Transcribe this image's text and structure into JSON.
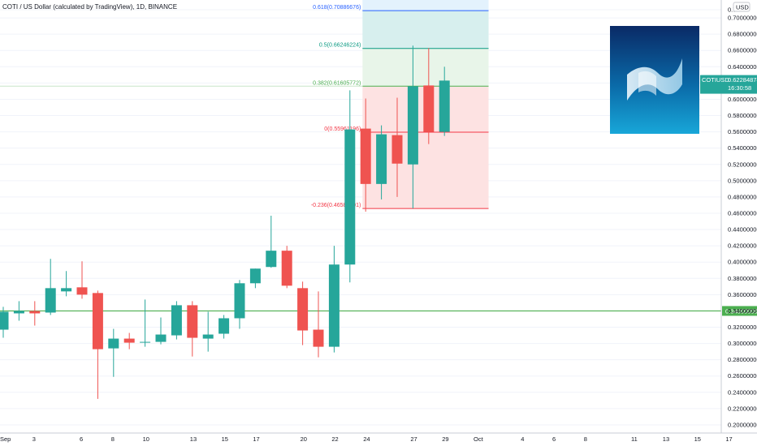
{
  "chart_data": {
    "type": "candlestick",
    "title": "COTI / US Dollar (calculated by TradingView), 1D, BINANCE",
    "currency_label": "USD",
    "y_ticks": [
      "0.20000000",
      "0.22000000",
      "0.24000000",
      "0.26000000",
      "0.28000000",
      "0.30000000",
      "0.32000000",
      "0.34000000",
      "0.36000000",
      "0.38000000",
      "0.40000000",
      "0.42000000",
      "0.44000000",
      "0.46000000",
      "0.48000000",
      "0.50000000",
      "0.52000000",
      "0.54000000",
      "0.56000000",
      "0.58000000",
      "0.60000000",
      "0.62000000",
      "0.64000000",
      "0.66000000",
      "0.68000000",
      "0.70000000",
      "0.7"
    ],
    "ylim": [
      0.19,
      0.722
    ],
    "x_ticks": [
      {
        "day": 0,
        "label": "Sep"
      },
      {
        "day": 2,
        "label": "3"
      },
      {
        "day": 5,
        "label": "6"
      },
      {
        "day": 7,
        "label": "8"
      },
      {
        "day": 9,
        "label": "10"
      },
      {
        "day": 12,
        "label": "13"
      },
      {
        "day": 14,
        "label": "15"
      },
      {
        "day": 16,
        "label": "17"
      },
      {
        "day": 19,
        "label": "20"
      },
      {
        "day": 21,
        "label": "22"
      },
      {
        "day": 23,
        "label": "24"
      },
      {
        "day": 26,
        "label": "27"
      },
      {
        "day": 28,
        "label": "29"
      },
      {
        "day": 30,
        "label": "Oct"
      },
      {
        "day": 33,
        "label": "4"
      },
      {
        "day": 35,
        "label": "6"
      },
      {
        "day": 37,
        "label": "8"
      },
      {
        "day": 40,
        "label": "11"
      },
      {
        "day": 42,
        "label": "13"
      },
      {
        "day": 44,
        "label": "15"
      },
      {
        "day": 46,
        "label": "17"
      }
    ],
    "candles": [
      {
        "day": 0,
        "open": 0.317,
        "high": 0.345,
        "low": 0.307,
        "close": 0.339
      },
      {
        "day": 1,
        "open": 0.337,
        "high": 0.352,
        "low": 0.328,
        "close": 0.34
      },
      {
        "day": 2,
        "open": 0.34,
        "high": 0.352,
        "low": 0.322,
        "close": 0.337
      },
      {
        "day": 3,
        "open": 0.338,
        "high": 0.404,
        "low": 0.335,
        "close": 0.368
      },
      {
        "day": 4,
        "open": 0.364,
        "high": 0.389,
        "low": 0.358,
        "close": 0.368
      },
      {
        "day": 5,
        "open": 0.369,
        "high": 0.401,
        "low": 0.355,
        "close": 0.36
      },
      {
        "day": 6,
        "open": 0.362,
        "high": 0.365,
        "low": 0.232,
        "close": 0.293
      },
      {
        "day": 7,
        "open": 0.294,
        "high": 0.318,
        "low": 0.259,
        "close": 0.306
      },
      {
        "day": 8,
        "open": 0.306,
        "high": 0.313,
        "low": 0.293,
        "close": 0.301
      },
      {
        "day": 9,
        "open": 0.301,
        "high": 0.354,
        "low": 0.296,
        "close": 0.302
      },
      {
        "day": 10,
        "open": 0.302,
        "high": 0.332,
        "low": 0.299,
        "close": 0.311
      },
      {
        "day": 11,
        "open": 0.31,
        "high": 0.352,
        "low": 0.305,
        "close": 0.347
      },
      {
        "day": 12,
        "open": 0.347,
        "high": 0.352,
        "low": 0.284,
        "close": 0.307
      },
      {
        "day": 13,
        "open": 0.306,
        "high": 0.339,
        "low": 0.29,
        "close": 0.311
      },
      {
        "day": 14,
        "open": 0.312,
        "high": 0.335,
        "low": 0.306,
        "close": 0.331
      },
      {
        "day": 15,
        "open": 0.331,
        "high": 0.378,
        "low": 0.318,
        "close": 0.374
      },
      {
        "day": 16,
        "open": 0.374,
        "high": 0.392,
        "low": 0.368,
        "close": 0.392
      },
      {
        "day": 17,
        "open": 0.394,
        "high": 0.457,
        "low": 0.393,
        "close": 0.414
      },
      {
        "day": 18,
        "open": 0.414,
        "high": 0.42,
        "low": 0.368,
        "close": 0.371
      },
      {
        "day": 19,
        "open": 0.368,
        "high": 0.376,
        "low": 0.298,
        "close": 0.316
      },
      {
        "day": 20,
        "open": 0.317,
        "high": 0.364,
        "low": 0.283,
        "close": 0.296
      },
      {
        "day": 21,
        "open": 0.296,
        "high": 0.42,
        "low": 0.289,
        "close": 0.397
      },
      {
        "day": 22,
        "open": 0.397,
        "high": 0.611,
        "low": 0.375,
        "close": 0.563
      },
      {
        "day": 23,
        "open": 0.564,
        "high": 0.601,
        "low": 0.462,
        "close": 0.496
      },
      {
        "day": 24,
        "open": 0.496,
        "high": 0.568,
        "low": 0.477,
        "close": 0.557
      },
      {
        "day": 25,
        "open": 0.556,
        "high": 0.602,
        "low": 0.48,
        "close": 0.521
      },
      {
        "day": 26,
        "open": 0.52,
        "high": 0.666,
        "low": 0.466,
        "close": 0.616
      },
      {
        "day": 27,
        "open": 0.617,
        "high": 0.663,
        "low": 0.545,
        "close": 0.56
      },
      {
        "day": 28,
        "open": 0.56,
        "high": 0.64,
        "low": 0.555,
        "close": 0.623
      }
    ],
    "horizontal_line": {
      "value": 0.34,
      "label": "0.34000000",
      "color": "#4caf50"
    },
    "last_price": {
      "symbol": "COTIUSD",
      "value": 0.6228,
      "label": "0.62284874",
      "countdown": "16:30:58",
      "color": "#26a69a"
    },
    "fib": {
      "start_day": 22.8,
      "end_day": 30.8,
      "levels": [
        {
          "ratio": 0.618,
          "value": 0.7089,
          "label": "0.618(0.70886676)",
          "fill": "#e3f2fd",
          "line": "#2962ff"
        },
        {
          "ratio": 0.5,
          "value": 0.6625,
          "label": "0.5(0.66246224)",
          "fill": "#d7efee",
          "line": "#089981"
        },
        {
          "ratio": 0.382,
          "value": 0.6161,
          "label": "0.382(0.61605772)",
          "fill": "#e8f5e9",
          "line": "#4caf50"
        },
        {
          "ratio": 0,
          "value": 0.5596,
          "label": "0(0.55961196)",
          "fill": "#fde2e2",
          "line": "#f23645"
        },
        {
          "ratio": -0.236,
          "value": 0.4658,
          "label": "-0.236(0.46583291)",
          "fill": null,
          "line": "#f23645"
        }
      ]
    },
    "colors": {
      "up": "#26a69a",
      "down": "#ef5350",
      "grid": "#f0f3fa",
      "axis_text": "#131722"
    }
  }
}
